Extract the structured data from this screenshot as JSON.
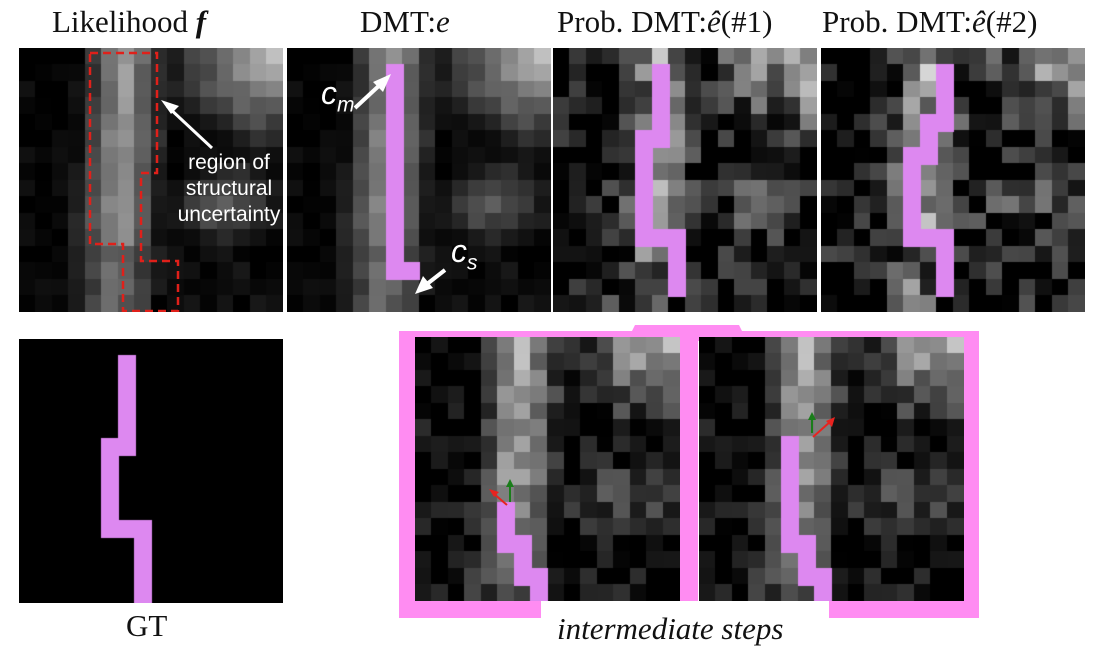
{
  "titles": {
    "likelihood_text": "Likelihood",
    "likelihood_symbol": "f",
    "dmt_text": "DMT:",
    "dmt_symbol": "e",
    "prob1_text": "Prob. DMT:",
    "prob1_symbol": "ê",
    "prob1_suffix": "(#1)",
    "prob2_text": "Prob. DMT:",
    "prob2_symbol": "ê",
    "prob2_suffix": "(#2)"
  },
  "annotations": {
    "region_line1": "region of",
    "region_line2": "structural",
    "region_line3": "uncertainty",
    "cm_label": "c",
    "cm_sub": "m",
    "cs_label": "c",
    "cs_sub": "s"
  },
  "captions": {
    "gt": "GT",
    "intermediate": "intermediate steps"
  },
  "colors": {
    "path": "#dd88f0",
    "frame": "#ff8cf2",
    "dashed": "#e0201a",
    "arrow_red": "#e8231f",
    "arrow_green": "#1a7d1a"
  }
}
